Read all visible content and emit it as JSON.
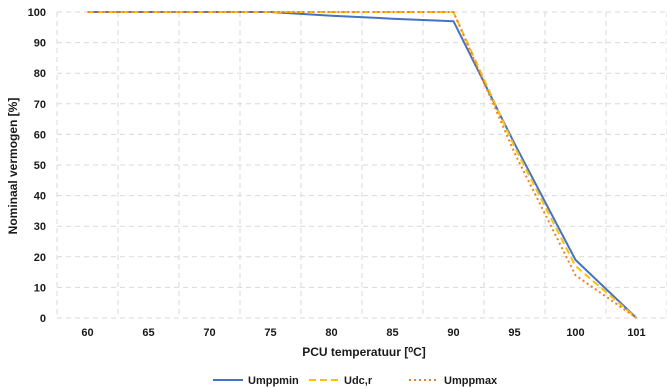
{
  "chart_data": {
    "type": "line",
    "categories": [
      "60",
      "65",
      "70",
      "75",
      "80",
      "85",
      "90",
      "95",
      "100",
      "101"
    ],
    "series": [
      {
        "name": "Umppmin",
        "values": [
          100,
          100,
          100,
          100,
          98.8,
          97.8,
          97,
          57,
          19,
          0
        ],
        "color": "#4472c4",
        "dash": "solid"
      },
      {
        "name": "Udc,r",
        "values": [
          100,
          100,
          100,
          100,
          100,
          100,
          100,
          56,
          17,
          0
        ],
        "color": "#ffc000",
        "dash": "dashed"
      },
      {
        "name": "Umppmax",
        "values": [
          100,
          100,
          100,
          100,
          100,
          100,
          100,
          54,
          14,
          0
        ],
        "color": "#ed7d31",
        "dash": "dotted"
      }
    ],
    "ylim": [
      0,
      100
    ],
    "yticks": [
      0,
      10,
      20,
      30,
      40,
      50,
      60,
      70,
      80,
      90,
      100
    ],
    "xlabel": "PCU temperatuur [⁰C]",
    "ylabel": "Nominaal vermogen [%]",
    "grid": true,
    "legend_position": "bottom"
  }
}
